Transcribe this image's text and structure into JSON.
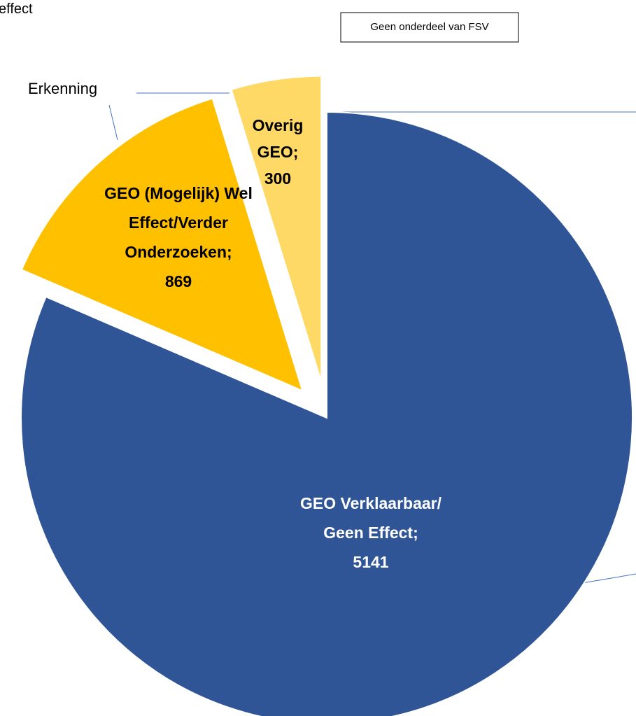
{
  "chart_data": {
    "type": "pie",
    "categories": [
      "GEO Verklaarbaar/ Geen Effect;",
      "GEO (Mogelijk) Wel Effect/Verder Onderzoeken;",
      "Overig GEO;"
    ],
    "values": [
      5141,
      869,
      300
    ],
    "colors": [
      "#2f5597",
      "#ffc000",
      "#ffd966"
    ],
    "annotations": [
      "effect",
      "Geen onderdeel van FSV",
      "Erkenning"
    ]
  }
}
